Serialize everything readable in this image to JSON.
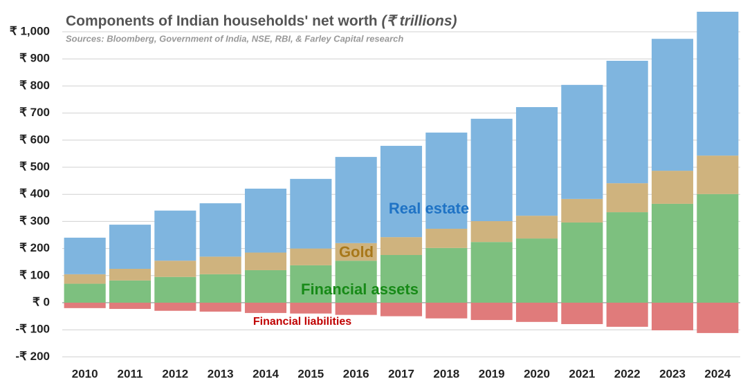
{
  "chart_data": {
    "type": "stacked_bar",
    "title": "Components of Indian households' net worth",
    "title_unit": "(₹ trillions)",
    "subtitle": "Sources: Bloomberg, Government of India, NSE, RBI, & Farley Capital research",
    "categories": [
      "2010",
      "2011",
      "2012",
      "2013",
      "2014",
      "2015",
      "2016",
      "2017",
      "2018",
      "2019",
      "2020",
      "2021",
      "2022",
      "2023",
      "2024"
    ],
    "series": [
      {
        "name": "Financial assets",
        "color": "#7dc07f",
        "label_color": "#178a17",
        "values": [
          70,
          82,
          95,
          105,
          120,
          138,
          155,
          176,
          202,
          224,
          237,
          296,
          334,
          365,
          401
        ]
      },
      {
        "name": "Gold",
        "color": "#cfb37e",
        "label_color": "#a8781a",
        "values": [
          35,
          43,
          60,
          65,
          65,
          62,
          65,
          66,
          71,
          77,
          84,
          87,
          107,
          122,
          142
        ]
      },
      {
        "name": "Real estate",
        "color": "#7fb5df",
        "label_color": "#1f73c5",
        "values": [
          135,
          163,
          185,
          197,
          236,
          257,
          318,
          337,
          355,
          378,
          401,
          421,
          452,
          487,
          531
        ]
      },
      {
        "name": "Financial liabilities",
        "color": "#e07b7b",
        "label_color": "#c00000",
        "values": [
          -20,
          -23,
          -30,
          -33,
          -38,
          -40,
          -45,
          -50,
          -58,
          -64,
          -71,
          -79,
          -89,
          -102,
          -112
        ]
      }
    ],
    "ylim": [
      -200,
      1075
    ],
    "yticks": [
      {
        "value": -200,
        "label": "-₹ 200"
      },
      {
        "value": -100,
        "label": "-₹ 100"
      },
      {
        "value": 0,
        "label": "₹ 0"
      },
      {
        "value": 100,
        "label": "₹ 100"
      },
      {
        "value": 200,
        "label": "₹ 200"
      },
      {
        "value": 300,
        "label": "₹ 300"
      },
      {
        "value": 400,
        "label": "₹ 400"
      },
      {
        "value": 500,
        "label": "₹ 500"
      },
      {
        "value": 600,
        "label": "₹ 600"
      },
      {
        "value": 700,
        "label": "₹ 700"
      },
      {
        "value": 800,
        "label": "₹ 800"
      },
      {
        "value": 900,
        "label": "₹ 900"
      },
      {
        "value": 1000,
        "label": "₹ 1,000"
      }
    ],
    "grid": true
  }
}
